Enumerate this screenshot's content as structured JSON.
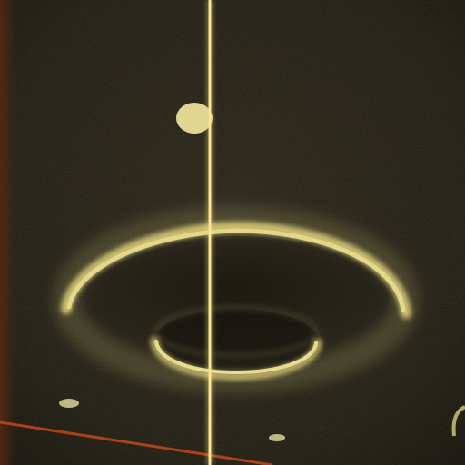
{
  "scene": {
    "description_colors": {
      "background": "#1c1911",
      "background_edge": "#0e0c08",
      "ring_glow": "#d9cc7a",
      "ring_core": "#e6da8c",
      "beam": "#f2d77a",
      "beam_core": "#fff1b0",
      "floor_line": "#b8451c",
      "left_edge_glow": "#5a2a10",
      "dot": "#e8e0a0"
    },
    "icons": {
      "outer_ring": "outer-ring-shape",
      "inner_ring": "inner-ring-shape",
      "vertical_beam": "vertical-beam-shape",
      "floating_dot": "floating-dot-shape"
    }
  }
}
